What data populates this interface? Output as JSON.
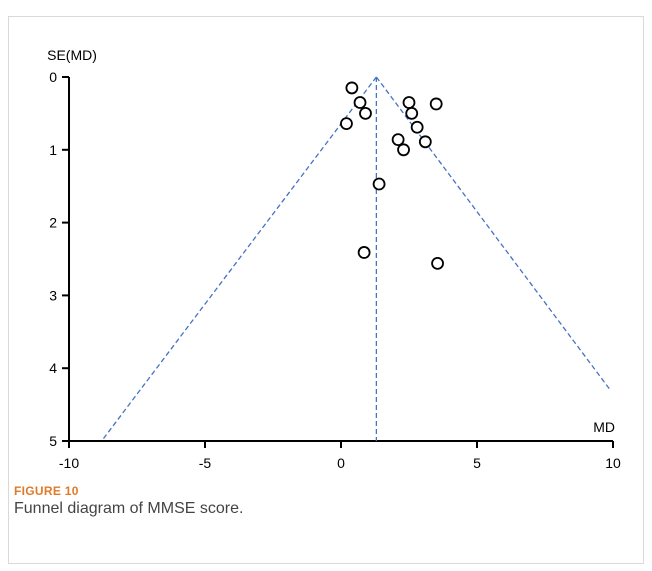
{
  "figure": {
    "label": "FIGURE 10",
    "caption": "Funnel diagram of MMSE score."
  },
  "colors": {
    "axis": "#000000",
    "funnel_line": "#4472c4",
    "points": "#000000",
    "label": "#e07a2a",
    "caption": "#444444"
  },
  "chart_data": {
    "type": "scatter",
    "title": "",
    "xlabel": "MD",
    "ylabel": "SE(MD)",
    "xlim": [
      -10,
      10
    ],
    "ylim": [
      5,
      0
    ],
    "xticks": [
      -10,
      -5,
      0,
      5,
      10
    ],
    "yticks": [
      0,
      1,
      2,
      3,
      4,
      5
    ],
    "y_inverted": true,
    "grid": false,
    "pooled_md": 1.3,
    "funnel_lines": [
      {
        "from": [
          1.3,
          0
        ],
        "to": [
          -8.8,
          5
        ]
      },
      {
        "from": [
          1.3,
          0
        ],
        "to": [
          9.9,
          4.3
        ]
      },
      {
        "from": [
          1.3,
          0
        ],
        "to": [
          1.3,
          5
        ]
      }
    ],
    "points": [
      {
        "x": 0.4,
        "y": 0.15
      },
      {
        "x": 0.7,
        "y": 0.35
      },
      {
        "x": 0.9,
        "y": 0.5
      },
      {
        "x": 0.2,
        "y": 0.64
      },
      {
        "x": 2.5,
        "y": 0.35
      },
      {
        "x": 3.5,
        "y": 0.37
      },
      {
        "x": 2.6,
        "y": 0.5
      },
      {
        "x": 2.8,
        "y": 0.69
      },
      {
        "x": 2.1,
        "y": 0.86
      },
      {
        "x": 3.1,
        "y": 0.89
      },
      {
        "x": 2.3,
        "y": 1.0
      },
      {
        "x": 1.4,
        "y": 1.47
      },
      {
        "x": 0.85,
        "y": 2.41
      },
      {
        "x": 3.55,
        "y": 2.56
      }
    ]
  }
}
